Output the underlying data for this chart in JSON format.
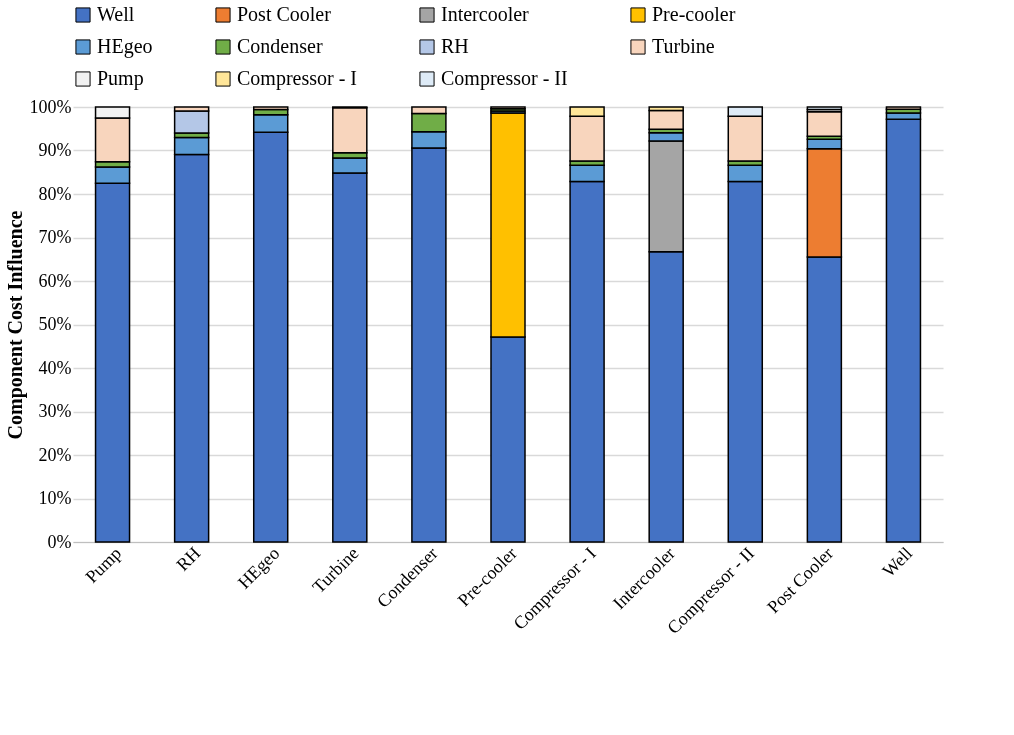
{
  "chart_data": {
    "type": "bar",
    "stacked": true,
    "ylabel": "Component Cost Influence",
    "categories": [
      "Pump",
      "RH",
      "HEgeo",
      "Turbine",
      "Condenser",
      "Pre-cooler",
      "Compressor - I",
      "Intercooler",
      "Compressor - II",
      "Post Cooler",
      "Well"
    ],
    "series": [
      {
        "name": "Well",
        "color": "#4472c4",
        "values": [
          82.5,
          89.1,
          94.2,
          84.8,
          90.6,
          47.1,
          82.9,
          66.7,
          82.9,
          65.5,
          97.2
        ]
      },
      {
        "name": "Post Cooler",
        "color": "#ed7d31",
        "values": [
          null,
          null,
          null,
          null,
          null,
          null,
          null,
          null,
          null,
          24.9,
          null
        ]
      },
      {
        "name": "Intercooler",
        "color": "#a5a5a5",
        "values": [
          null,
          null,
          null,
          null,
          null,
          null,
          null,
          25.5,
          null,
          null,
          null
        ]
      },
      {
        "name": "Pre-cooler",
        "color": "#ffc000",
        "values": [
          null,
          null,
          null,
          null,
          null,
          51.5,
          null,
          null,
          null,
          null,
          null
        ]
      },
      {
        "name": "HEgeo",
        "color": "#5b9bd5",
        "values": [
          3.7,
          3.9,
          4.0,
          3.5,
          3.7,
          0.5,
          3.7,
          1.9,
          3.7,
          2.2,
          1.4
        ]
      },
      {
        "name": "Condenser",
        "color": "#70ad47",
        "values": [
          1.2,
          1.0,
          1.2,
          1.2,
          4.2,
          0.5,
          1.0,
          0.8,
          1.0,
          0.7,
          0.9
        ]
      },
      {
        "name": "RH",
        "color": "#b4c7e7",
        "values": [
          null,
          5.1,
          null,
          null,
          null,
          null,
          null,
          null,
          null,
          null,
          null
        ]
      },
      {
        "name": "Turbine",
        "color": "#f8d5bd",
        "values": [
          10.1,
          0.9,
          0.6,
          10.3,
          1.5,
          0.4,
          10.3,
          4.3,
          10.3,
          5.6,
          0.5
        ]
      },
      {
        "name": "Pump",
        "color": "#f2f2f2",
        "values": [
          2.5,
          null,
          null,
          0.2,
          null,
          null,
          null,
          null,
          null,
          0.5,
          null
        ]
      },
      {
        "name": "Compressor - I",
        "color": "#ffe699",
        "values": [
          null,
          null,
          null,
          null,
          null,
          null,
          2.1,
          0.8,
          null,
          null,
          null
        ]
      },
      {
        "name": "Compressor - II",
        "color": "#deebf7",
        "values": [
          null,
          null,
          null,
          null,
          null,
          null,
          null,
          null,
          2.1,
          0.6,
          null
        ]
      }
    ],
    "ylim": [
      0,
      100
    ],
    "yticks": [
      {
        "value": 0,
        "label": "0%"
      },
      {
        "value": 10,
        "label": "10%"
      },
      {
        "value": 20,
        "label": "20%"
      },
      {
        "value": 30,
        "label": "30%"
      },
      {
        "value": 40,
        "label": "40%"
      },
      {
        "value": 50,
        "label": "50%"
      },
      {
        "value": 60,
        "label": "60%"
      },
      {
        "value": 70,
        "label": "70%"
      },
      {
        "value": 80,
        "label": "80%"
      },
      {
        "value": 90,
        "label": "90%"
      },
      {
        "value": 100,
        "label": "100%"
      }
    ],
    "grid": "y",
    "legend": "top"
  }
}
